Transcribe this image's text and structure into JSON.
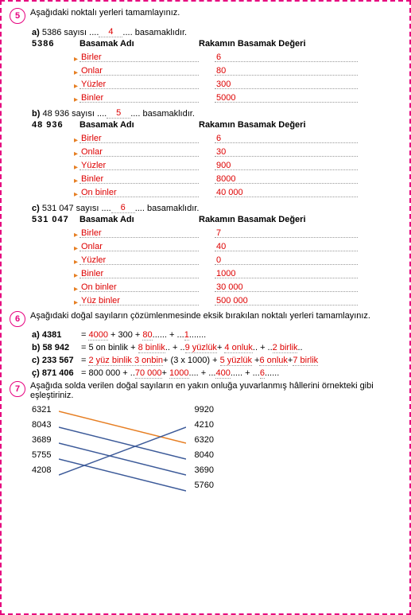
{
  "q5": {
    "prompt": "Aşağıdaki noktalı yerleri tamamlayınız.",
    "a": {
      "label": "a)",
      "text1": "5386 sayısı ",
      "ans": "4",
      "text2": " basamaklıdır.",
      "num": "5386",
      "h1": "Basamak Adı",
      "h2": "Rakamın Basamak Değeri",
      "rows": [
        {
          "p": "Birler",
          "v": "6"
        },
        {
          "p": "Onlar",
          "v": "80"
        },
        {
          "p": "Yüzler",
          "v": "300"
        },
        {
          "p": "Binler",
          "v": "5000"
        }
      ]
    },
    "b": {
      "label": "b)",
      "text1": "48 936 sayısı ",
      "ans": "5",
      "text2": " basamaklıdır.",
      "num": "48 936",
      "h1": "Basamak Adı",
      "h2": "Rakamın Basamak Değeri",
      "rows": [
        {
          "p": "Birler",
          "v": "6"
        },
        {
          "p": "Onlar",
          "v": "30"
        },
        {
          "p": "Yüzler",
          "v": "900"
        },
        {
          "p": "Binler",
          "v": "8000"
        },
        {
          "p": "On binler",
          "v": "40 000"
        }
      ]
    },
    "c": {
      "label": "c)",
      "text1": "531 047 sayısı ",
      "ans": "6",
      "text2": " basamaklıdır.",
      "num": "531 047",
      "h1": "Basamak Adı",
      "h2": "Rakamın Basamak Değeri",
      "rows": [
        {
          "p": "Birler",
          "v": "7"
        },
        {
          "p": "Onlar",
          "v": "40"
        },
        {
          "p": "Yüzler",
          "v": "0"
        },
        {
          "p": "Binler",
          "v": "1000"
        },
        {
          "p": "On binler",
          "v": "30 000"
        },
        {
          "p": "Yüz binler",
          "v": "500 000"
        }
      ]
    }
  },
  "q6": {
    "prompt": "Aşağıdaki doğal sayıların çözümlenmesinde eksik bırakılan noktalı yerleri tamamlayınız.",
    "a": {
      "l": "a)",
      "n": "4381",
      "eq": "= ",
      "p": [
        {
          "t": "4000",
          "r": 1
        },
        {
          "t": " + 300 + "
        },
        {
          "t": "80",
          "r": 1
        },
        {
          "t": "...... + ..."
        },
        {
          "t": "1",
          "r": 1
        },
        {
          "t": "......."
        }
      ]
    },
    "b": {
      "l": "b)",
      "n": "58 942",
      "eq": "= 5 on binlik + ",
      "p": [
        {
          "t": "8 binlik",
          "r": 1
        },
        {
          "t": ".. + .."
        },
        {
          "t": "9 yüzlük",
          "r": 1
        },
        {
          "t": "+ "
        },
        {
          "t": "4 onluk",
          "r": 1
        },
        {
          "t": ".. + .."
        },
        {
          "t": "2 birlik",
          "r": 1
        },
        {
          "t": ".."
        }
      ]
    },
    "c": {
      "l": "c)",
      "n": "233 567",
      "eq": "= ",
      "p": [
        {
          "t": "2 yüz binlik 3 onbin",
          "r": 1
        },
        {
          "t": "+ (3 x 1000) + "
        },
        {
          "t": "5 yüzlük",
          "r": 1
        },
        {
          "t": " +"
        },
        {
          "t": "6 onluk",
          "r": 1
        },
        {
          "t": "+"
        },
        {
          "t": "7 birlik",
          "r": 1
        }
      ]
    },
    "d": {
      "l": "ç)",
      "n": "871 406",
      "eq": "= 800 000 + ..",
      "p": [
        {
          "t": "70 000",
          "r": 1
        },
        {
          "t": "+ "
        },
        {
          "t": "1000",
          "r": 1
        },
        {
          "t": ".... + ..."
        },
        {
          "t": "400",
          "r": 1
        },
        {
          "t": "..... + ..."
        },
        {
          "t": "6",
          "r": 1
        },
        {
          "t": "......"
        }
      ]
    }
  },
  "q7": {
    "prompt": "Aşağıda solda verilen doğal sayıların en yakın onluğa yuvarlanmış hâllerini örnekteki gibi eşleştiriniz.",
    "left": [
      "6321",
      "8043",
      "3689",
      "5755",
      "4208"
    ],
    "right": [
      "9920",
      "4210",
      "6320",
      "8040",
      "3690",
      "5760"
    ],
    "lines": [
      [
        0,
        2,
        "#e67e22"
      ],
      [
        1,
        3,
        "#3b5998"
      ],
      [
        2,
        4,
        "#3b5998"
      ],
      [
        3,
        5,
        "#3b5998"
      ],
      [
        4,
        1,
        "#3b5998"
      ]
    ]
  }
}
